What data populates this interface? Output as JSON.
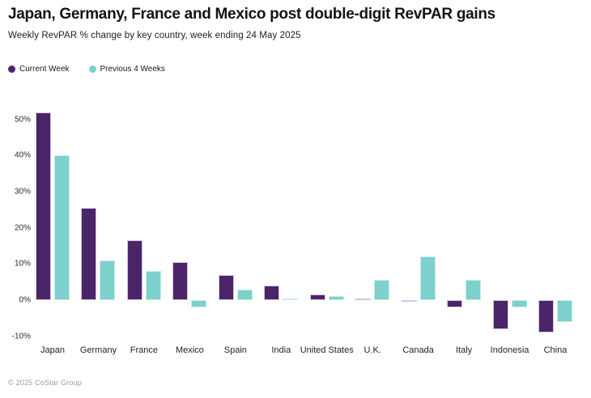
{
  "header": {
    "title": "Japan, Germany, France and Mexico post double-digit RevPAR gains",
    "subtitle": "Weekly RevPAR % change by key country, week ending 24 May 2025"
  },
  "legend": {
    "items": [
      {
        "label": "Current Week",
        "color": "#4a2567"
      },
      {
        "label": "Previous 4 Weeks",
        "color": "#7dd0cc"
      }
    ]
  },
  "footer": {
    "copyright": "© 2025 CoStar Group"
  },
  "chart_data": {
    "type": "bar",
    "title": "Japan, Germany, France and Mexico post double-digit RevPAR gains",
    "subtitle": "Weekly RevPAR % change by key country, week ending 24 May 2025",
    "categories": [
      "Japan",
      "Germany",
      "France",
      "Mexico",
      "Spain",
      "India",
      "United States",
      "U.K.",
      "Canada",
      "Italy",
      "Indonesia",
      "China"
    ],
    "series": [
      {
        "name": "Current Week",
        "color": "#4a2567",
        "values": [
          52,
          25.5,
          16.5,
          10.5,
          7,
          4,
          1.5,
          0.5,
          -0.5,
          -2,
          -8,
          -9
        ]
      },
      {
        "name": "Previous 4 Weeks",
        "color": "#7dd0cc",
        "values": [
          40,
          11,
          8,
          -2,
          3,
          0.5,
          1,
          5.5,
          12,
          5.5,
          -2,
          -6
        ]
      }
    ],
    "xlabel": "",
    "ylabel": "",
    "yticks": [
      50,
      40,
      30,
      20,
      10,
      0,
      -10
    ],
    "ytick_format": "percent",
    "ylim": [
      -11,
      54
    ],
    "grid": false,
    "axis_lines": false,
    "legend_position": "top-left"
  }
}
